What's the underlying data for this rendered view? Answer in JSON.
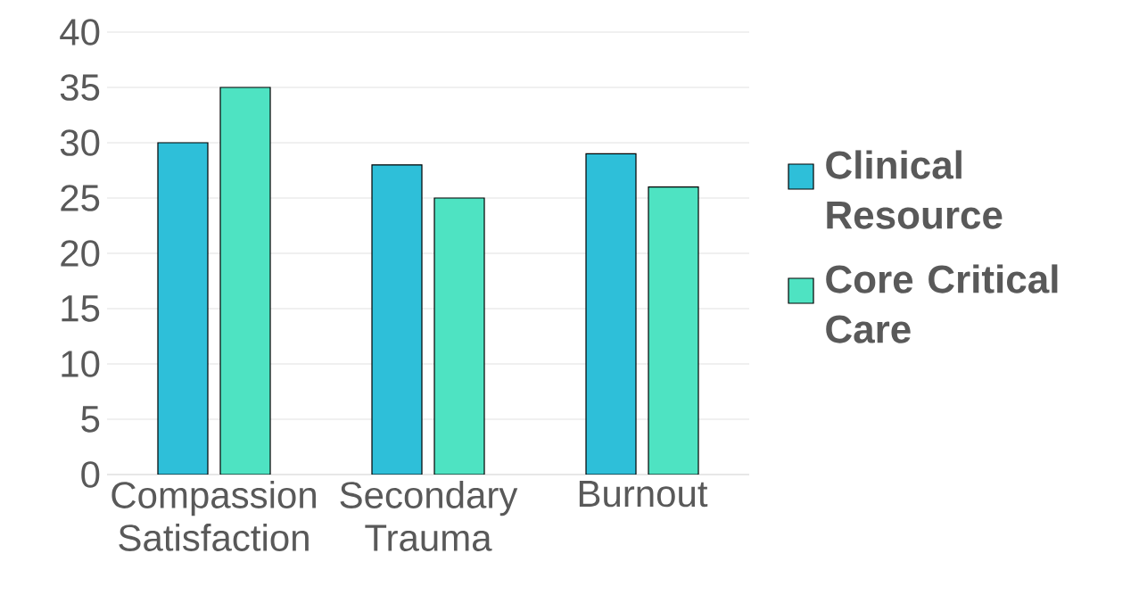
{
  "chart_data": {
    "type": "bar",
    "categories": [
      "Compassion Satisfaction",
      "Secondary Trauma",
      "Burnout"
    ],
    "series": [
      {
        "name": "Clinical Resource",
        "color": "#2ebfd9",
        "values": [
          30,
          28,
          29
        ]
      },
      {
        "name": "Core Critical Care",
        "color": "#4ee3c2",
        "values": [
          35,
          25,
          26
        ]
      }
    ],
    "ylim": [
      0,
      40
    ],
    "yticks": [
      0,
      5,
      10,
      15,
      20,
      25,
      30,
      35,
      40
    ],
    "grid": "y",
    "legend": "right"
  }
}
